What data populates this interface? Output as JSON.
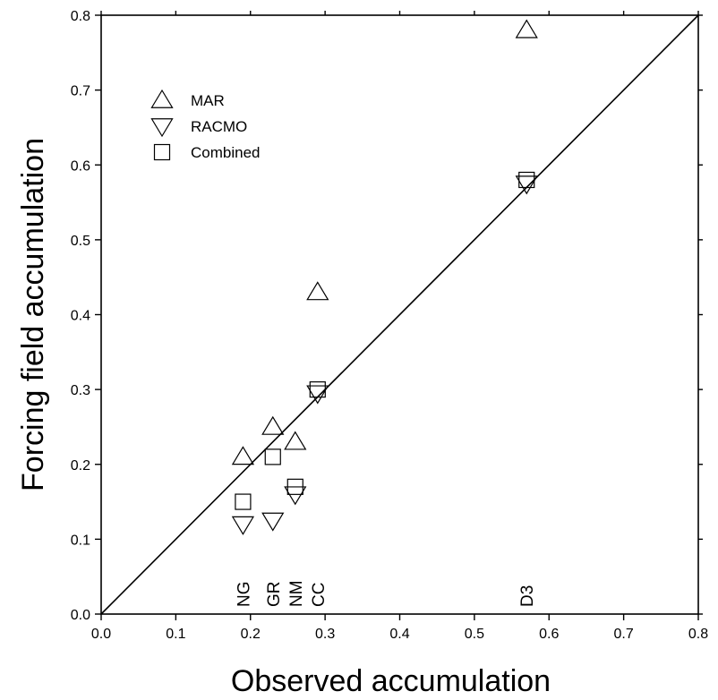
{
  "chart_data": {
    "type": "scatter",
    "title": "",
    "xlabel": "Observed accumulation",
    "ylabel": "Forcing field accumulation",
    "xlim": [
      0.0,
      0.8
    ],
    "ylim": [
      0.0,
      0.8
    ],
    "xticks": [
      0.0,
      0.1,
      0.2,
      0.3,
      0.4,
      0.5,
      0.6,
      0.7,
      0.8
    ],
    "yticks": [
      0.0,
      0.1,
      0.2,
      0.3,
      0.4,
      0.5,
      0.6,
      0.7,
      0.8
    ],
    "tick_labels": [
      "0.0",
      "0.1",
      "0.2",
      "0.3",
      "0.4",
      "0.5",
      "0.6",
      "0.7",
      "0.8"
    ],
    "grid": false,
    "legend_position": "top-left",
    "reference_line": {
      "type": "one-to-one",
      "from": [
        0.0,
        0.0
      ],
      "to": [
        0.8,
        0.8
      ]
    },
    "series": [
      {
        "name": "MAR",
        "marker": "triangle-up",
        "points": [
          {
            "x": 0.19,
            "y": 0.21
          },
          {
            "x": 0.23,
            "y": 0.25
          },
          {
            "x": 0.26,
            "y": 0.23
          },
          {
            "x": 0.29,
            "y": 0.43
          },
          {
            "x": 0.57,
            "y": 0.78
          }
        ]
      },
      {
        "name": "RACMO",
        "marker": "triangle-down",
        "points": [
          {
            "x": 0.19,
            "y": 0.12
          },
          {
            "x": 0.23,
            "y": 0.125
          },
          {
            "x": 0.26,
            "y": 0.16
          },
          {
            "x": 0.29,
            "y": 0.295
          },
          {
            "x": 0.57,
            "y": 0.575
          }
        ]
      },
      {
        "name": "Combined",
        "marker": "square",
        "points": [
          {
            "x": 0.19,
            "y": 0.15
          },
          {
            "x": 0.23,
            "y": 0.21
          },
          {
            "x": 0.26,
            "y": 0.17
          },
          {
            "x": 0.29,
            "y": 0.3
          },
          {
            "x": 0.57,
            "y": 0.58
          }
        ]
      }
    ],
    "site_labels": [
      {
        "text": "NG",
        "x": 0.19
      },
      {
        "text": "GR",
        "x": 0.23
      },
      {
        "text": "NM",
        "x": 0.26
      },
      {
        "text": "CC",
        "x": 0.29
      },
      {
        "text": "D3",
        "x": 0.57
      }
    ]
  }
}
